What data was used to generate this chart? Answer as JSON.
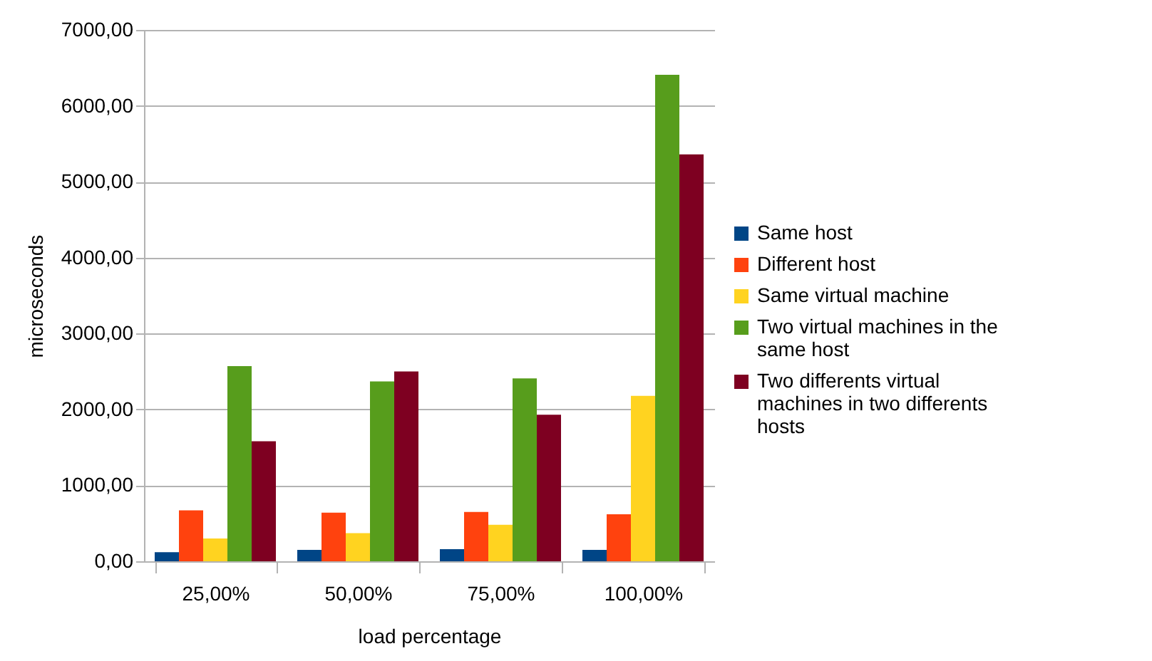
{
  "chart_data": {
    "type": "bar",
    "xlabel": "load percentage",
    "ylabel": "microseconds",
    "categories": [
      "25,00%",
      "50,00%",
      "75,00%",
      "100,00%"
    ],
    "series": [
      {
        "name": "Same host",
        "color": "#004586",
        "values": [
          120,
          150,
          160,
          150
        ]
      },
      {
        "name": "Different host",
        "color": "#ff420e",
        "values": [
          670,
          640,
          650,
          620
        ]
      },
      {
        "name": "Same virtual machine",
        "color": "#ffd320",
        "values": [
          300,
          370,
          480,
          2180
        ]
      },
      {
        "name": "Two virtual machines in the same host",
        "color": "#579d1c",
        "values": [
          2570,
          2370,
          2410,
          6410
        ]
      },
      {
        "name": "Two differents virtual machines in two differents hosts",
        "color": "#7e0021",
        "values": [
          1580,
          2500,
          1930,
          5360
        ]
      }
    ],
    "ylim": [
      0,
      7000
    ],
    "yticks": [
      {
        "value": 0,
        "label": "0,00"
      },
      {
        "value": 1000,
        "label": "1000,00"
      },
      {
        "value": 2000,
        "label": "2000,00"
      },
      {
        "value": 3000,
        "label": "3000,00"
      },
      {
        "value": 4000,
        "label": "4000,00"
      },
      {
        "value": 5000,
        "label": "5000,00"
      },
      {
        "value": 6000,
        "label": "6000,00"
      },
      {
        "value": 7000,
        "label": "7000,00"
      }
    ],
    "grid": "y",
    "legend": "right"
  }
}
